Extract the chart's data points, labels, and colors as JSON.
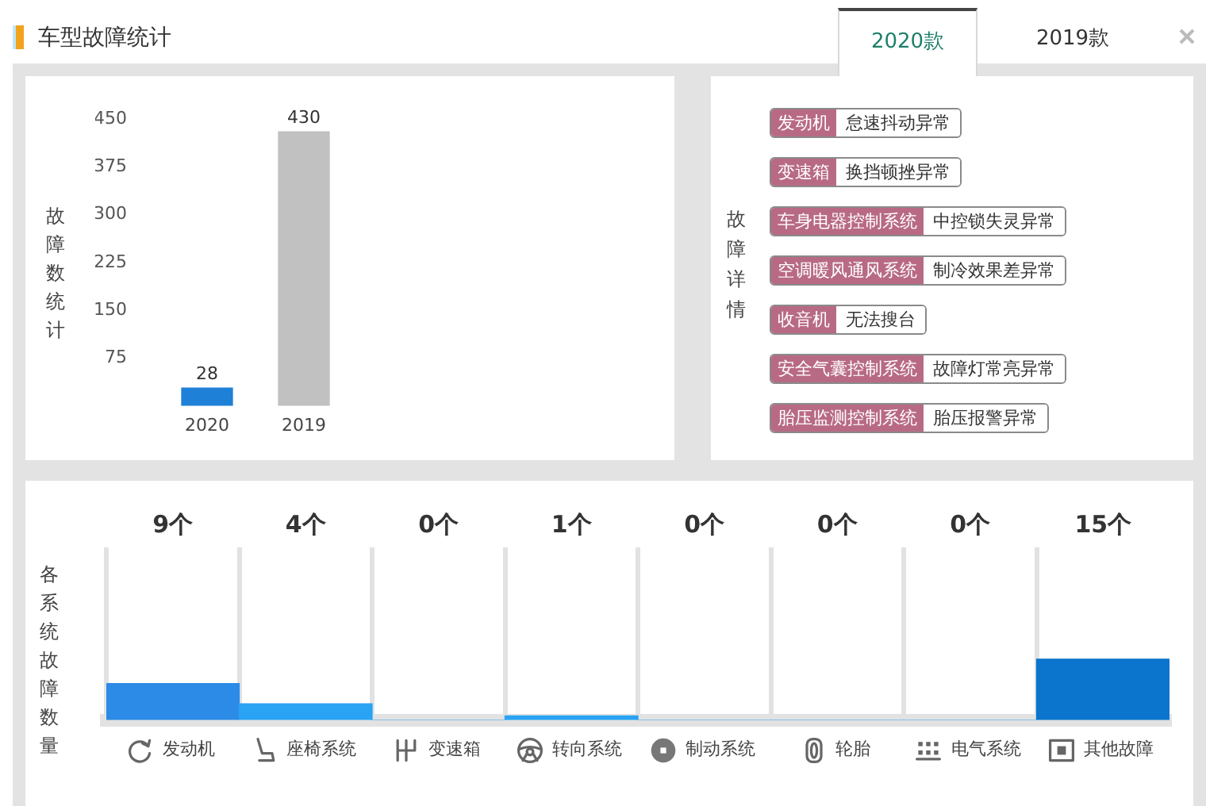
{
  "chart_data": [
    {
      "type": "bar",
      "title": "车型故障统计",
      "annotations": [
        "2020款",
        "2019款"
      ],
      "ylabel": "故障数统计",
      "categories": [
        "2020",
        "2019"
      ],
      "values": [
        28,
        430
      ],
      "colors": [
        "#1f80d8",
        "#c1c1c1"
      ],
      "ylim": [
        0,
        450
      ],
      "yticks": [
        75,
        150,
        225,
        300,
        375,
        450
      ],
      "data_labels": true
    },
    {
      "type": "other",
      "ylabel": "故障详情",
      "categories": [
        "发动机",
        "变速箱",
        "车身电器控制系统",
        "空调暖风通风系统",
        "收音机",
        "安全气囊控制系统",
        "胎压监测控制系统"
      ],
      "annotations": [
        "怠速抖动异常",
        "换挡顿挫异常",
        "中控锁失灵异常",
        "制冷效果差异常",
        "无法搜台",
        "故障灯常亮异常",
        "胎压报警异常"
      ]
    },
    {
      "type": "bar",
      "ylabel": "各系统故障数量",
      "categories": [
        "发动机",
        "座椅系统",
        "变速箱",
        "转向系统",
        "制动系统",
        "轮胎",
        "电气系统",
        "其他故障"
      ],
      "values": [
        9,
        4,
        0,
        1,
        0,
        0,
        0,
        15
      ],
      "value_labels": [
        "9个",
        "4个",
        "0个",
        "1个",
        "0个",
        "0个",
        "0个",
        "15个"
      ],
      "colors": [
        "#2b8be6",
        "#29a3f3",
        "#29a3f3",
        "#29a3f3",
        "#29a3f3",
        "#29a3f3",
        "#29a3f3",
        "#0b74cc"
      ],
      "grid": "x"
    }
  ]
}
